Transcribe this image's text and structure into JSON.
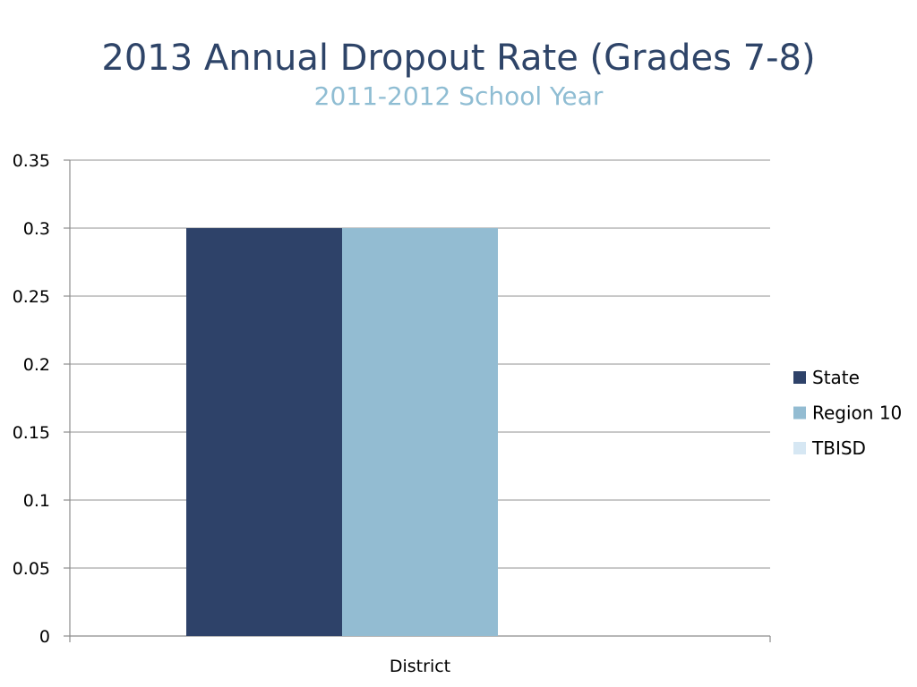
{
  "chart_data": {
    "type": "bar",
    "title": "2013 Annual Dropout Rate (Grades 7-8)",
    "subtitle": "2011-2012 School Year",
    "categories": [
      "District"
    ],
    "series": [
      {
        "name": "State",
        "values": [
          0.3
        ],
        "color": "#2e4269"
      },
      {
        "name": "Region 10",
        "values": [
          0.3
        ],
        "color": "#93bcd2"
      },
      {
        "name": "TBISD",
        "values": [
          0
        ],
        "color": "#d6e7f3"
      }
    ],
    "ylim": [
      0,
      0.35
    ],
    "yticks": [
      "0",
      "0.05",
      "0.1",
      "0.15",
      "0.2",
      "0.25",
      "0.3",
      "0.35"
    ],
    "grid": true,
    "legend_position": "right"
  }
}
